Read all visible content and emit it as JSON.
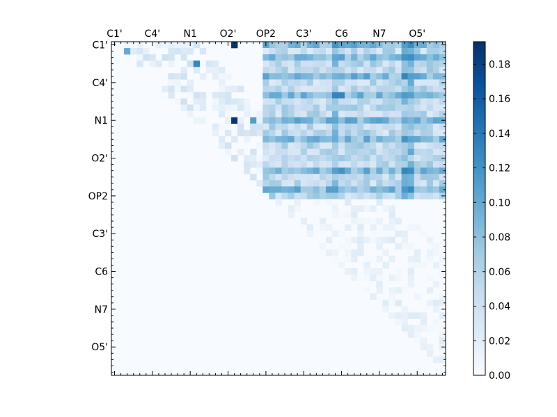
{
  "chart_data": {
    "type": "heatmap",
    "title": "",
    "xlabel": "",
    "ylabel": "",
    "n": 53,
    "tick_labels": [
      "C1'",
      "C4'",
      "N1",
      "O2'",
      "OP2",
      "C3'",
      "C6",
      "N7",
      "O5'"
    ],
    "tick_index": [
      0,
      6,
      12,
      18,
      24,
      30,
      36,
      42,
      48
    ],
    "x_tick_position": "top",
    "y_tick_position": "left",
    "colormap": [
      "#f7fbff",
      "#deebf7",
      "#c6dbef",
      "#9ecae1",
      "#6baed6",
      "#4292c6",
      "#2171b5",
      "#08519c",
      "#08306b"
    ],
    "colorbar": {
      "vmin": 0.0,
      "vmax": 0.193,
      "ticks": [
        0.0,
        0.02,
        0.04,
        0.06,
        0.08,
        0.1,
        0.12,
        0.14,
        0.16,
        0.18
      ],
      "tick_labels": [
        "0.00",
        "0.02",
        "0.04",
        "0.06",
        "0.08",
        "0.10",
        "0.12",
        "0.14",
        "0.16",
        "0.18"
      ]
    },
    "triangle": "upper",
    "notable_cells": [
      {
        "row": 0,
        "col": 19,
        "value": 0.19
      },
      {
        "row": 12,
        "col": 19,
        "value": 0.19
      },
      {
        "row": 3,
        "col": 13,
        "value": 0.13
      },
      {
        "row": 1,
        "col": 2,
        "value": 0.1
      },
      {
        "row": 8,
        "col": 36,
        "value": 0.13
      },
      {
        "row": 20,
        "col": 46,
        "value": 0.13
      },
      {
        "row": 20,
        "col": 36,
        "value": 0.12
      },
      {
        "row": 2,
        "col": 46,
        "value": 0.12
      },
      {
        "row": 5,
        "col": 46,
        "value": 0.13
      },
      {
        "row": 15,
        "col": 46,
        "value": 0.12
      },
      {
        "row": 12,
        "col": 22,
        "value": 0.11
      },
      {
        "row": 0,
        "col": 35,
        "value": 0.12
      },
      {
        "row": 0,
        "col": 46,
        "value": 0.11
      }
    ]
  }
}
